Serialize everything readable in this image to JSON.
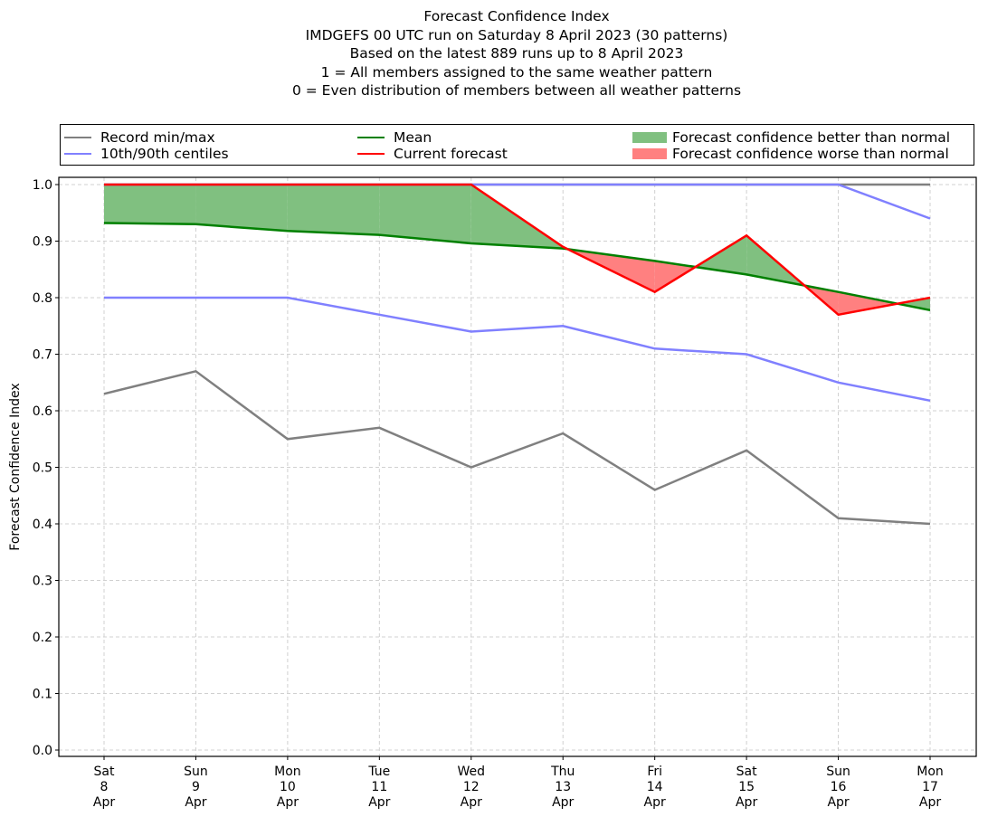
{
  "title_lines": [
    "Forecast Confidence Index",
    "IMDGEFS 00 UTC run on Saturday 8 April 2023 (30 patterns)",
    "Based on the latest 889 runs up to 8 April 2023",
    "1 = All members assigned to the same weather pattern",
    "0 = Even distribution of members between all weather patterns"
  ],
  "legend": {
    "record": {
      "label": "Record min/max",
      "color": "#808080"
    },
    "centiles": {
      "label": "10th/90th centiles",
      "color": "#8080ff"
    },
    "mean": {
      "label": "Mean",
      "color": "#008000"
    },
    "current": {
      "label": "Current forecast",
      "color": "#ff0000"
    },
    "better": {
      "label": "Forecast confidence better than normal",
      "color": "#80c080"
    },
    "worse": {
      "label": "Forecast confidence worse than normal",
      "color": "#ff8080"
    }
  },
  "chart_data": {
    "type": "line",
    "title": "Forecast Confidence Index",
    "xlabel": "",
    "ylabel": "Forecast Confidence Index",
    "ylim": [
      0.0,
      1.0
    ],
    "yticks": [
      "0.0",
      "0.1",
      "0.2",
      "0.3",
      "0.4",
      "0.5",
      "0.6",
      "0.7",
      "0.8",
      "0.9",
      "1.0"
    ],
    "grid": true,
    "legend_position": "top",
    "categories": [
      [
        "Sat",
        "8",
        "Apr"
      ],
      [
        "Sun",
        "9",
        "Apr"
      ],
      [
        "Mon",
        "10",
        "Apr"
      ],
      [
        "Tue",
        "11",
        "Apr"
      ],
      [
        "Wed",
        "12",
        "Apr"
      ],
      [
        "Thu",
        "13",
        "Apr"
      ],
      [
        "Fri",
        "14",
        "Apr"
      ],
      [
        "Sat",
        "15",
        "Apr"
      ],
      [
        "Sun",
        "16",
        "Apr"
      ],
      [
        "Mon",
        "17",
        "Apr"
      ]
    ],
    "series": [
      {
        "name": "Record min",
        "key": "record_min",
        "color": "#808080",
        "values": [
          0.63,
          0.67,
          0.55,
          0.57,
          0.5,
          0.56,
          0.46,
          0.53,
          0.41,
          0.4
        ]
      },
      {
        "name": "Record max",
        "key": "record_max",
        "color": "#808080",
        "values": [
          1.0,
          1.0,
          1.0,
          1.0,
          1.0,
          1.0,
          1.0,
          1.0,
          1.0,
          1.0
        ]
      },
      {
        "name": "10th centile",
        "key": "p10",
        "color": "#8080ff",
        "values": [
          0.8,
          0.8,
          0.8,
          0.77,
          0.74,
          0.75,
          0.71,
          0.7,
          0.65,
          0.618
        ]
      },
      {
        "name": "90th centile",
        "key": "p90",
        "color": "#8080ff",
        "values": [
          1.0,
          1.0,
          1.0,
          1.0,
          1.0,
          1.0,
          1.0,
          1.0,
          1.0,
          0.94
        ]
      },
      {
        "name": "Mean",
        "key": "mean",
        "color": "#008000",
        "values": [
          0.932,
          0.93,
          0.918,
          0.911,
          0.896,
          0.887,
          0.865,
          0.841,
          0.81,
          0.778
        ]
      },
      {
        "name": "Current forecast",
        "key": "current",
        "color": "#ff0000",
        "values": [
          1.0,
          1.0,
          1.0,
          1.0,
          1.0,
          0.89,
          0.81,
          0.91,
          0.77,
          0.8
        ]
      }
    ],
    "fills": {
      "better_color": "#80c080",
      "worse_color": "#ff8080"
    }
  }
}
